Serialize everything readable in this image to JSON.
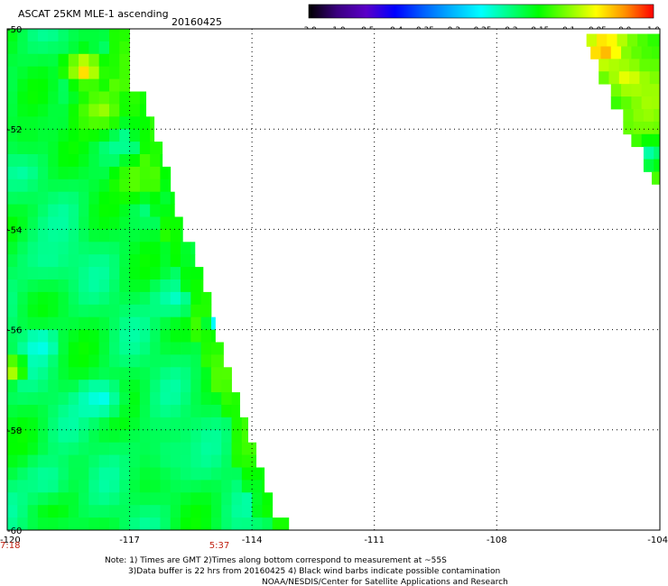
{
  "header": {
    "title": "ASCAT 25KM MLE-1 ascending",
    "date": "20160425"
  },
  "chart_data": {
    "type": "heatmap",
    "title": "ASCAT 25KM MLE-1 ascending",
    "subtitle": "20160425",
    "x_range": [
      -120,
      -104
    ],
    "y_range": [
      -60,
      -50
    ],
    "x_ticks": [
      -120,
      -117,
      -114,
      -111,
      -108,
      -104
    ],
    "x_tick_labels": [
      "-120",
      "-117",
      "-114",
      "-111",
      "-108",
      "-104"
    ],
    "y_ticks": [
      -50,
      -52,
      -54,
      -56,
      -58,
      -60
    ],
    "y_tick_labels": [
      "-50",
      "-52",
      "-54",
      "-56",
      "-58",
      "-60"
    ],
    "grid": true,
    "colorbar": {
      "labels": [
        "-3.0",
        "-1.0",
        "-0.5",
        "-0.4",
        "-0.35",
        "-0.3",
        "-0.25",
        "-0.2",
        "-0.15",
        "-0.1",
        "-0.05",
        "0.0",
        "1.0"
      ],
      "colors": [
        "#000000",
        "#3a0080",
        "#5a00c8",
        "#0000ff",
        "#0060ff",
        "#00b4ff",
        "#00ffff",
        "#00ff80",
        "#00ff00",
        "#80ff00",
        "#ffff00",
        "#ff9000",
        "#ff0000"
      ]
    },
    "swath_times": [
      {
        "label": "7:18",
        "lon": -120,
        "color": "#c02010"
      },
      {
        "label": "5:37",
        "lon": -114.8,
        "color": "#c02010"
      }
    ],
    "swaths": [
      {
        "name": "west",
        "edge": [
          [
            -51.0,
            -117.0
          ],
          [
            -50.0,
            -117.0
          ],
          [
            -51.0,
            -116.9
          ],
          [
            -51.5,
            -116.6
          ],
          [
            -52.0,
            -116.4
          ],
          [
            -52.5,
            -116.2
          ],
          [
            -53.0,
            -116.0
          ],
          [
            -53.5,
            -115.9
          ],
          [
            -54.0,
            -115.7
          ],
          [
            -54.5,
            -115.4
          ],
          [
            -55.0,
            -115.2
          ],
          [
            -55.5,
            -115.0
          ],
          [
            -56.0,
            -114.9
          ],
          [
            -56.5,
            -114.7
          ],
          [
            -57.0,
            -114.5
          ],
          [
            -57.5,
            -114.3
          ],
          [
            -58.0,
            -114.1
          ],
          [
            -58.5,
            -113.9
          ],
          [
            -59.0,
            -113.7
          ],
          [
            -59.5,
            -113.5
          ],
          [
            -60.0,
            -113.1
          ]
        ],
        "spots": [
          {
            "lat": -50.8,
            "lon": -118.1,
            "radius_deg": 0.7,
            "value": 0.0
          },
          {
            "lat": -51.6,
            "lon": -117.7,
            "radius_deg": 1.0,
            "value": -0.08
          },
          {
            "lat": -53.0,
            "lon": -116.8,
            "radius_deg": 0.8,
            "value": -0.1
          },
          {
            "lat": -55.4,
            "lon": -115.9,
            "radius_deg": 0.8,
            "value": -0.25
          },
          {
            "lat": -56.3,
            "lon": -119.2,
            "radius_deg": 0.6,
            "value": -0.27
          },
          {
            "lat": -57.4,
            "lon": -117.7,
            "radius_deg": 0.8,
            "value": -0.27
          },
          {
            "lat": -56.8,
            "lon": -119.9,
            "radius_deg": 0.5,
            "value": -0.05
          },
          {
            "lat": -59.0,
            "lon": -119.0,
            "radius_deg": 0.9,
            "value": -0.24
          },
          {
            "lat": -52.2,
            "lon": -119.5,
            "radius_deg": 0.9,
            "value": -0.18
          },
          {
            "lat": -54.6,
            "lon": -119.0,
            "radius_deg": 1.3,
            "value": -0.23
          },
          {
            "lat": -58.5,
            "lon": -116.0,
            "radius_deg": 1.2,
            "value": -0.22
          },
          {
            "lat": -55.9,
            "lon": -114.9,
            "radius_deg": 0.3,
            "value": -0.33
          }
        ],
        "base_value": -0.2
      },
      {
        "name": "east",
        "edge": [
          [
            -50.1,
            -105.8
          ],
          [
            -50.1,
            -104.0
          ],
          [
            -53.2,
            -104.0
          ],
          [
            -53.2,
            -104.1
          ],
          [
            -52.9,
            -104.2
          ],
          [
            -52.6,
            -104.4
          ],
          [
            -52.3,
            -104.7
          ],
          [
            -51.8,
            -104.9
          ],
          [
            -51.4,
            -105.2
          ],
          [
            -50.9,
            -105.5
          ],
          [
            -50.5,
            -105.7
          ]
        ],
        "spots": [
          {
            "lat": -50.4,
            "lon": -105.4,
            "radius_deg": 0.6,
            "value": 0.0
          },
          {
            "lat": -51.0,
            "lon": -104.8,
            "radius_deg": 0.6,
            "value": -0.05
          },
          {
            "lat": -52.5,
            "lon": -104.2,
            "radius_deg": 0.6,
            "value": -0.25
          }
        ],
        "base_value": -0.12
      }
    ]
  },
  "notes": {
    "line1": "Note: 1) Times are GMT 2)Times along bottom correspond to measurement at ~55S",
    "line2": "3)Data buffer is 22 hrs from 20160425 4) Black wind barbs indicate possible contamination",
    "line3": "NOAA/NESDIS/Center for Satellite Applications and Research"
  }
}
